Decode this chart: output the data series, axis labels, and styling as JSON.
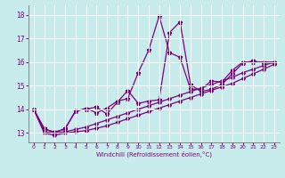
{
  "xlabel": "Windchill (Refroidissement éolien,°C)",
  "background_color": "#c8ecec",
  "line_color": "#800080",
  "grid_color": "#ffffff",
  "xlim": [
    -0.5,
    23.5
  ],
  "ylim": [
    12.6,
    18.4
  ],
  "xticks": [
    0,
    1,
    2,
    3,
    4,
    5,
    6,
    7,
    8,
    9,
    10,
    11,
    12,
    13,
    14,
    15,
    16,
    17,
    18,
    19,
    20,
    21,
    22,
    23
  ],
  "yticks": [
    13,
    14,
    15,
    16,
    17,
    18
  ],
  "series1_x": [
    0,
    1,
    2,
    3,
    4,
    5,
    6,
    7,
    8,
    9,
    10,
    11,
    12,
    13,
    14,
    15,
    16,
    17,
    18,
    19,
    20,
    21,
    22,
    23
  ],
  "series1_y": [
    14.0,
    13.2,
    13.0,
    13.2,
    13.9,
    14.05,
    13.85,
    14.05,
    14.35,
    14.45,
    15.55,
    16.5,
    17.95,
    16.4,
    16.2,
    14.85,
    14.85,
    15.2,
    15.15,
    15.65,
    16.0,
    16.0,
    16.0,
    16.0
  ],
  "series2_x": [
    0,
    1,
    2,
    3,
    4,
    5,
    6,
    7,
    8,
    9,
    10,
    11,
    12,
    13,
    14,
    15,
    16,
    17,
    18,
    19,
    20,
    21,
    22,
    23
  ],
  "series2_y": [
    14.0,
    13.15,
    13.05,
    13.15,
    13.95,
    14.0,
    14.1,
    13.8,
    14.3,
    14.8,
    14.25,
    14.35,
    14.4,
    17.25,
    17.7,
    15.05,
    14.75,
    14.85,
    15.05,
    15.5,
    15.95,
    16.05,
    15.95,
    15.95
  ],
  "series3_x": [
    0,
    1,
    2,
    3,
    4,
    5,
    6,
    7,
    8,
    9,
    10,
    11,
    12,
    13,
    14,
    15,
    16,
    17,
    18,
    19,
    20,
    21,
    22,
    23
  ],
  "series3_y": [
    14.0,
    13.05,
    13.0,
    13.05,
    13.15,
    13.25,
    13.4,
    13.55,
    13.7,
    13.85,
    14.0,
    14.15,
    14.3,
    14.45,
    14.6,
    14.75,
    14.9,
    15.05,
    15.2,
    15.35,
    15.55,
    15.7,
    15.85,
    16.0
  ],
  "series4_x": [
    0,
    1,
    2,
    3,
    4,
    5,
    6,
    7,
    8,
    9,
    10,
    11,
    12,
    13,
    14,
    15,
    16,
    17,
    18,
    19,
    20,
    21,
    22,
    23
  ],
  "series4_y": [
    14.0,
    13.0,
    12.9,
    13.0,
    13.05,
    13.1,
    13.2,
    13.3,
    13.45,
    13.6,
    13.75,
    13.9,
    14.05,
    14.2,
    14.35,
    14.5,
    14.65,
    14.8,
    14.95,
    15.1,
    15.3,
    15.5,
    15.7,
    15.9
  ]
}
